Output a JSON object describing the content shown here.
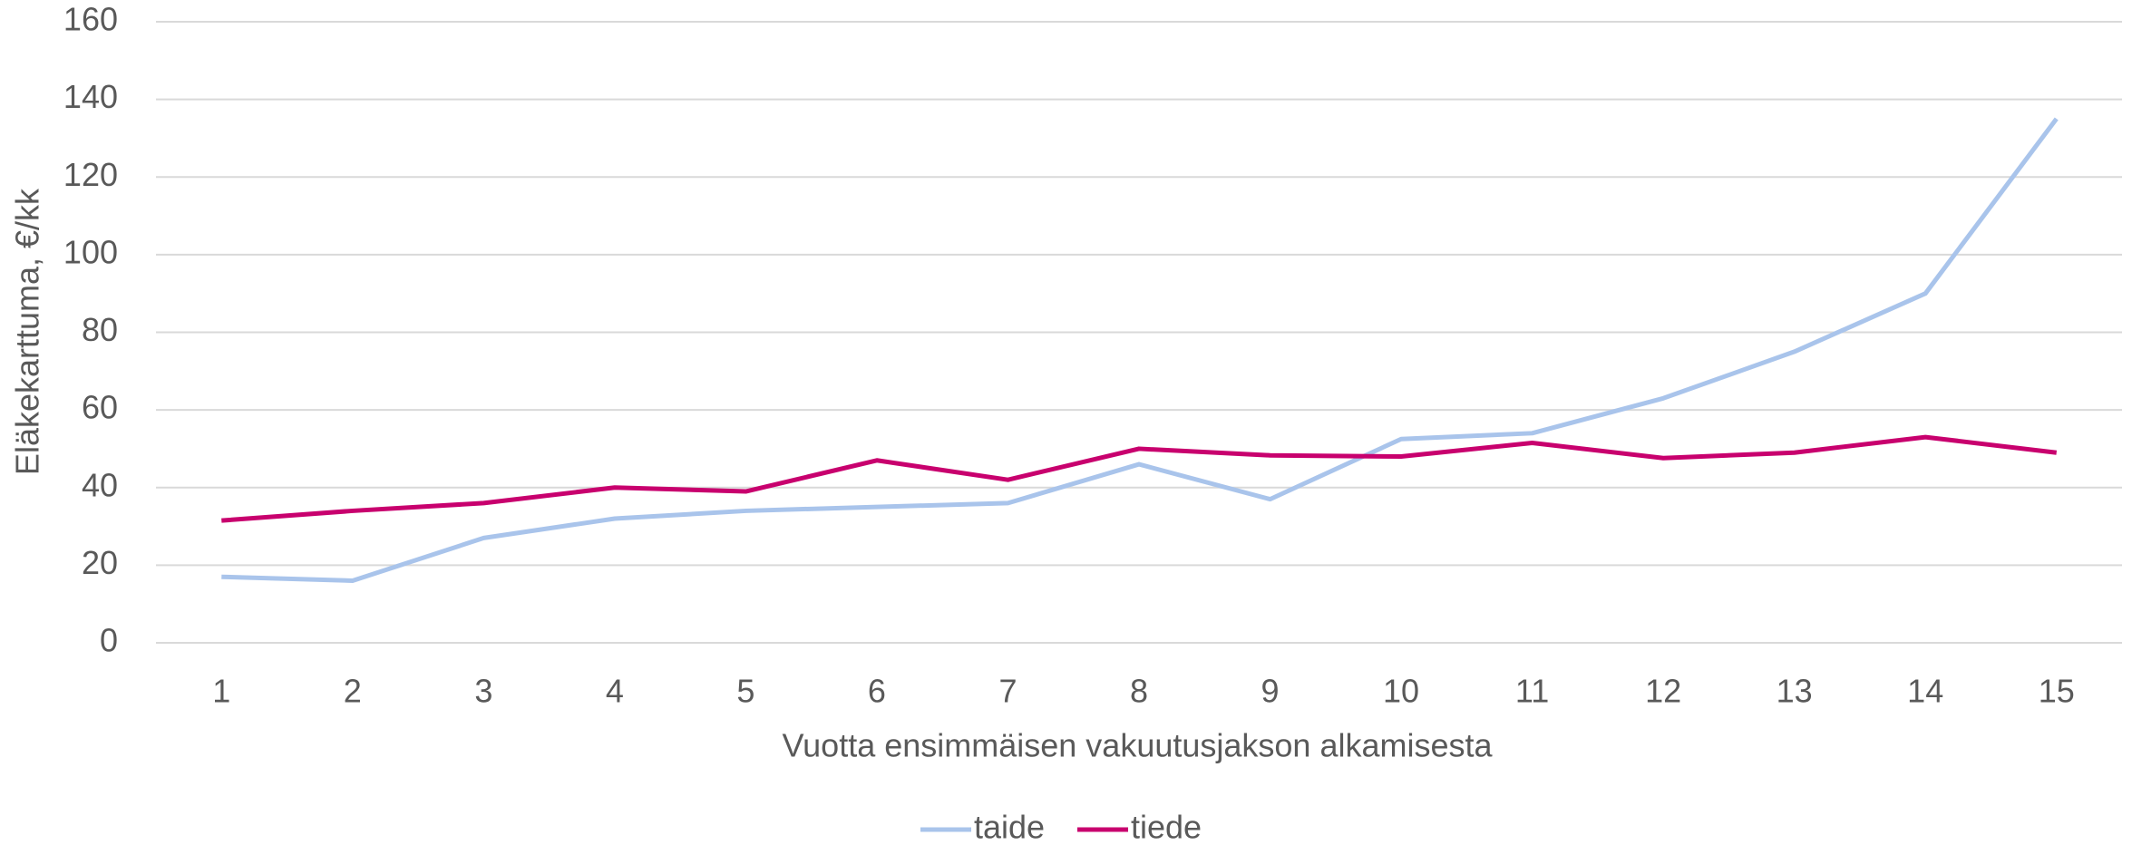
{
  "chart_data": {
    "type": "line",
    "x_label": "Vuotta ensimmäisen vakuutusjakson alkamisesta",
    "y_label": "Eläkekarttuma, €/kk",
    "categories": [
      "1",
      "2",
      "3",
      "4",
      "5",
      "6",
      "7",
      "8",
      "9",
      "10",
      "11",
      "12",
      "13",
      "14",
      "15"
    ],
    "series": [
      {
        "name": "taide",
        "color": "#a9c4eb",
        "values": [
          17,
          16,
          27,
          32,
          34,
          35,
          36,
          46,
          37,
          52.5,
          54,
          63,
          75,
          90,
          135
        ]
      },
      {
        "name": "tiede",
        "color": "#c8006e",
        "values": [
          31.5,
          34,
          36,
          40,
          39,
          47,
          42,
          50,
          48.3,
          48,
          51.5,
          47.6,
          49,
          53,
          49
        ]
      }
    ],
    "ylim": [
      0,
      160
    ],
    "yticks": [
      0,
      20,
      40,
      60,
      80,
      100,
      120,
      140,
      160
    ],
    "grid": true,
    "legend": "bottom"
  }
}
